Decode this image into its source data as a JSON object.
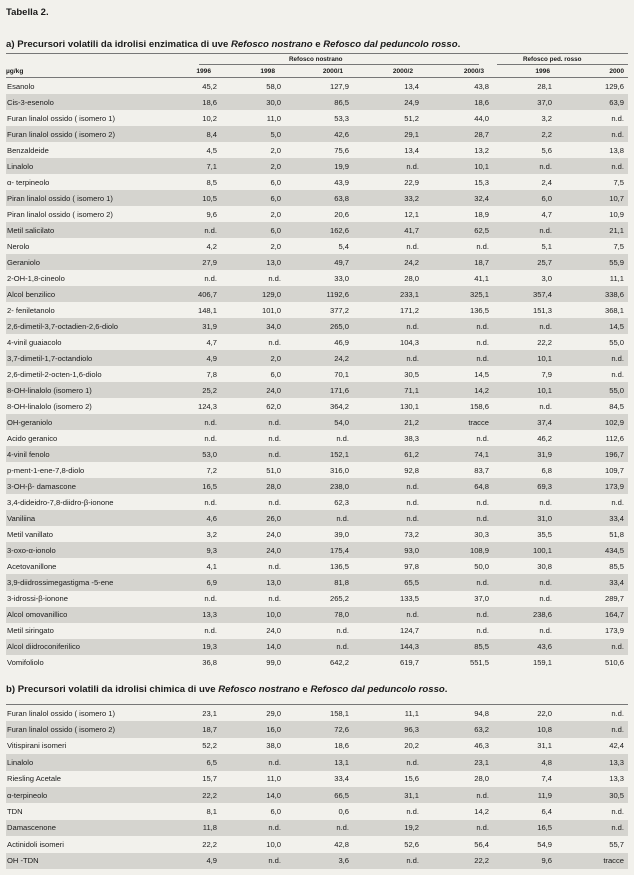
{
  "title": "Tabella 2.",
  "section_a": {
    "parts": [
      "a) Precursori volatili da idrolisi enzimatica di uve ",
      "Refosco nostrano",
      " e ",
      "Refosco dal peduncolo rosso",
      "."
    ],
    "unit": "µg/kg",
    "group_nostrano": "Refosco nostrano",
    "group_peduncolo": "Refosco ped. rosso",
    "columns": [
      "1996",
      "1998",
      "2000/1",
      "2000/2",
      "2000/3",
      "1996",
      "2000"
    ],
    "rows": [
      [
        "Esanolo",
        "45,2",
        "58,0",
        "127,9",
        "13,4",
        "43,8",
        "28,1",
        "129,6"
      ],
      [
        "Cis-3-esenolo",
        "18,6",
        "30,0",
        "86,5",
        "24,9",
        "18,6",
        "37,0",
        "63,9"
      ],
      [
        "Furan linalol ossido ( isomero 1)",
        "10,2",
        "11,0",
        "53,3",
        "51,2",
        "44,0",
        "3,2",
        "n.d."
      ],
      [
        "Furan linalol ossido ( isomero 2)",
        "8,4",
        "5,0",
        "42,6",
        "29,1",
        "28,7",
        "2,2",
        "n.d."
      ],
      [
        "Benzaldeide",
        "4,5",
        "2,0",
        "75,6",
        "13,4",
        "13,2",
        "5,6",
        "13,8"
      ],
      [
        "Linalolo",
        "7,1",
        "2,0",
        "19,9",
        "n.d.",
        "10,1",
        "n.d.",
        "n.d."
      ],
      [
        "α- terpineolo",
        "8,5",
        "6,0",
        "43,9",
        "22,9",
        "15,3",
        "2,4",
        "7,5"
      ],
      [
        "Piran linalol ossido ( isomero 1)",
        "10,5",
        "6,0",
        "63,8",
        "33,2",
        "32,4",
        "6,0",
        "10,7"
      ],
      [
        "Piran linalol ossido ( isomero 2)",
        "9,6",
        "2,0",
        "20,6",
        "12,1",
        "18,9",
        "4,7",
        "10,9"
      ],
      [
        "Metil salicilato",
        "n.d.",
        "6,0",
        "162,6",
        "41,7",
        "62,5",
        "n.d.",
        "21,1"
      ],
      [
        "Nerolo",
        "4,2",
        "2,0",
        "5,4",
        "n.d.",
        "n.d.",
        "5,1",
        "7,5"
      ],
      [
        "Geraniolo",
        "27,9",
        "13,0",
        "49,7",
        "24,2",
        "18,7",
        "25,7",
        "55,9"
      ],
      [
        "2-OH-1,8-cineolo",
        "n.d.",
        "n.d.",
        "33,0",
        "28,0",
        "41,1",
        "3,0",
        "11,1"
      ],
      [
        "Alcol benzilico",
        "406,7",
        "129,0",
        "1192,6",
        "233,1",
        "325,1",
        "357,4",
        "338,6"
      ],
      [
        "2- feniletanolo",
        "148,1",
        "101,0",
        "377,2",
        "171,2",
        "136,5",
        "151,3",
        "368,1"
      ],
      [
        "2,6-dimetil-3,7-octadien-2,6-diolo",
        "31,9",
        "34,0",
        "265,0",
        "n.d.",
        "n.d.",
        "n.d.",
        "14,5"
      ],
      [
        "4-vinil guaiacolo",
        "4,7",
        "n.d.",
        "46,9",
        "104,3",
        "n.d.",
        "22,2",
        "55,0"
      ],
      [
        "3,7-dimetil-1,7-octandiolo",
        "4,9",
        "2,0",
        "24,2",
        "n.d.",
        "n.d.",
        "10,1",
        "n.d."
      ],
      [
        "2,6-dimetil-2-octen-1,6-diolo",
        "7,8",
        "6,0",
        "70,1",
        "30,5",
        "14,5",
        "7,9",
        "n.d."
      ],
      [
        "8-OH-linalolo (isomero 1)",
        "25,2",
        "24,0",
        "171,6",
        "71,1",
        "14,2",
        "10,1",
        "55,0"
      ],
      [
        "8-OH-linalolo (isomero 2)",
        "124,3",
        "62,0",
        "364,2",
        "130,1",
        "158,6",
        "n.d.",
        "84,5"
      ],
      [
        "OH-geraniolo",
        "n.d.",
        "n.d.",
        "54,0",
        "21,2",
        "tracce",
        "37,4",
        "102,9"
      ],
      [
        "Acido geranico",
        "n.d.",
        "n.d.",
        "n.d.",
        "38,3",
        "n.d.",
        "46,2",
        "112,6"
      ],
      [
        "4-vinil fenolo",
        "53,0",
        "n.d.",
        "152,1",
        "61,2",
        "74,1",
        "31,9",
        "196,7"
      ],
      [
        "p-ment-1-ene-7,8-diolo",
        "7,2",
        "51,0",
        "316,0",
        "92,8",
        "83,7",
        "6,8",
        "109,7"
      ],
      [
        "3-OH-β- damascone",
        "16,5",
        "28,0",
        "238,0",
        "n.d.",
        "64,8",
        "69,3",
        "173,9"
      ],
      [
        "3,4-dideidro-7,8-diidro-β-ionone",
        "n.d.",
        "n.d.",
        "62,3",
        "n.d.",
        "n.d.",
        "n.d.",
        "n.d."
      ],
      [
        "Vaniliina",
        "4,6",
        "26,0",
        "n.d.",
        "n.d.",
        "n.d.",
        "31,0",
        "33,4"
      ],
      [
        "Metil vanillato",
        "3,2",
        "24,0",
        "39,0",
        "73,2",
        "30,3",
        "35,5",
        "51,8"
      ],
      [
        "3-oxo-α-ionolo",
        "9,3",
        "24,0",
        "175,4",
        "93,0",
        "108,9",
        "100,1",
        "434,5"
      ],
      [
        "Acetovanillone",
        "4,1",
        "n.d.",
        "136,5",
        "97,8",
        "50,0",
        "30,8",
        "85,5"
      ],
      [
        "3,9-diidrossimegastigma -5-ene",
        "6,9",
        "13,0",
        "81,8",
        "65,5",
        "n.d.",
        "n.d.",
        "33,4"
      ],
      [
        "3-idrossi-β-ionone",
        "n.d.",
        "n.d.",
        "265,2",
        "133,5",
        "37,0",
        "n.d.",
        "289,7"
      ],
      [
        "Alcol omovanillico",
        "13,3",
        "10,0",
        "78,0",
        "n.d.",
        "n.d.",
        "238,6",
        "164,7"
      ],
      [
        "Metil siringato",
        "n.d.",
        "24,0",
        "n.d.",
        "124,7",
        "n.d.",
        "n.d.",
        "173,9"
      ],
      [
        "Alcol diidroconiferilico",
        "19,3",
        "14,0",
        "n.d.",
        "144,3",
        "85,5",
        "43,6",
        "n.d."
      ],
      [
        "Vomifoliolo",
        "36,8",
        "99,0",
        "642,2",
        "619,7",
        "551,5",
        "159,1",
        "510,6"
      ]
    ]
  },
  "section_b": {
    "parts": [
      "b) Precursori volatili da idrolisi chimica di uve ",
      "Refosco nostrano",
      " e ",
      "Refosco dal peduncolo rosso",
      "."
    ],
    "rows": [
      [
        "Furan linalol ossido ( isomero 1)",
        "23,1",
        "29,0",
        "158,1",
        "11,1",
        "94,8",
        "22,0",
        "n.d."
      ],
      [
        "Furan linalol ossido ( isomero 2)",
        "18,7",
        "16,0",
        "72,6",
        "96,3",
        "63,2",
        "10,8",
        "n.d."
      ],
      [
        "Vitispirani isomeri",
        "52,2",
        "38,0",
        "18,6",
        "20,2",
        "46,3",
        "31,1",
        "42,4"
      ],
      [
        "Linalolo",
        "6,5",
        "n.d.",
        "13,1",
        "n.d.",
        "23,1",
        "4,8",
        "13,3"
      ],
      [
        "Riesling Acetale",
        "15,7",
        "11,0",
        "33,4",
        "15,6",
        "28,0",
        "7,4",
        "13,3"
      ],
      [
        "α-terpineolo",
        "22,2",
        "14,0",
        "66,5",
        "31,1",
        "n.d.",
        "11,9",
        "30,5"
      ],
      [
        "TDN",
        "8,1",
        "6,0",
        "0,6",
        "n.d.",
        "14,2",
        "6,4",
        "n.d."
      ],
      [
        "Damascenone",
        "11,8",
        "n.d.",
        "n.d.",
        "19,2",
        "n.d.",
        "16,5",
        "n.d."
      ],
      [
        "Actinidoli isomeri",
        "22,2",
        "10,0",
        "42,8",
        "52,6",
        "56,4",
        "54,9",
        "55,7"
      ],
      [
        "OH -TDN",
        "4,9",
        "n.d.",
        "3,6",
        "n.d.",
        "22,2",
        "9,6",
        "tracce"
      ]
    ]
  }
}
